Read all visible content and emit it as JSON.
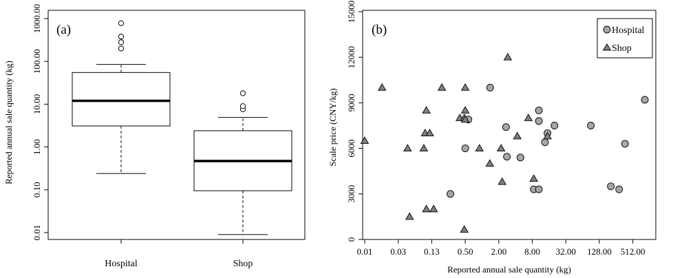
{
  "chart_data": [
    {
      "type": "boxplot",
      "panel_label": "(a)",
      "ylabel": "Reported annual sale quantity (kg)",
      "xlabel": "",
      "y_scale": "log10",
      "ylim": [
        0.01,
        1000
      ],
      "y_ticks": [
        {
          "value": 0.01,
          "label": "0.01"
        },
        {
          "value": 0.1,
          "label": "0.10"
        },
        {
          "value": 1,
          "label": "1.00"
        },
        {
          "value": 10,
          "label": "10.00"
        },
        {
          "value": 100,
          "label": "100.00"
        },
        {
          "value": 1000,
          "label": "1000.00"
        }
      ],
      "categories": [
        "Hospital",
        "Shop"
      ],
      "boxes": [
        {
          "name": "Hospital",
          "whisker_low": 0.24,
          "q1": 3.1,
          "median": 12,
          "q3": 55,
          "whisker_high": 85,
          "outliers": [
            200,
            280,
            380,
            780
          ]
        },
        {
          "name": "Shop",
          "whisker_low": 0.009,
          "q1": 0.095,
          "median": 0.47,
          "q3": 2.4,
          "whisker_high": 4.9,
          "outliers": [
            7.6,
            9,
            18
          ]
        }
      ]
    },
    {
      "type": "scatter",
      "panel_label": "(b)",
      "xlabel": "Reported annual sale quantity (kg)",
      "ylabel": "Scale price (CNY/kg)",
      "x_scale": "log2",
      "xlim": [
        0.0078125,
        1024
      ],
      "ylim": [
        0,
        15000
      ],
      "x_ticks": [
        {
          "value": 0.0078125,
          "label": "0.01"
        },
        {
          "value": 0.03125,
          "label": "0.03"
        },
        {
          "value": 0.125,
          "label": "0.13"
        },
        {
          "value": 0.5,
          "label": "0.50"
        },
        {
          "value": 2,
          "label": "2.00"
        },
        {
          "value": 8,
          "label": "8.00"
        },
        {
          "value": 32,
          "label": "32.00"
        },
        {
          "value": 128,
          "label": "128.00"
        },
        {
          "value": 512,
          "label": "512.00"
        }
      ],
      "y_ticks": [
        0,
        3000,
        6000,
        9000,
        12000,
        15000
      ],
      "legend": {
        "position": "top-right",
        "entries": [
          {
            "name": "Hospital",
            "marker": "circle"
          },
          {
            "name": "Shop",
            "marker": "triangle"
          }
        ]
      },
      "series": [
        {
          "name": "Hospital",
          "marker": "circle",
          "color": "#a6a6a6",
          "points": [
            [
              0.27,
              3000
            ],
            [
              0.5,
              6000
            ],
            [
              0.57,
              7900
            ],
            [
              1.4,
              10000
            ],
            [
              2.7,
              7400
            ],
            [
              2.8,
              5450
            ],
            [
              4.9,
              5400
            ],
            [
              8.5,
              3300
            ],
            [
              10.5,
              8500
            ],
            [
              10.5,
              7800
            ],
            [
              10.5,
              3300
            ],
            [
              13.5,
              6400
            ],
            [
              15,
              7000
            ],
            [
              20,
              7500
            ],
            [
              90,
              7500
            ],
            [
              206,
              3500
            ],
            [
              290,
              3300
            ],
            [
              370,
              6300
            ],
            [
              840,
              9200
            ]
          ]
        },
        {
          "name": "Shop",
          "marker": "triangle",
          "color": "#7f7f7f",
          "points": [
            [
              0.0078,
              6500
            ],
            [
              0.016,
              10000
            ],
            [
              0.046,
              6000
            ],
            [
              0.05,
              1500
            ],
            [
              0.09,
              6000
            ],
            [
              0.095,
              7000
            ],
            [
              0.1,
              8500
            ],
            [
              0.1,
              2000
            ],
            [
              0.115,
              7000
            ],
            [
              0.135,
              2000
            ],
            [
              0.19,
              10000
            ],
            [
              0.4,
              8000
            ],
            [
              0.48,
              8000
            ],
            [
              0.5,
              10000
            ],
            [
              0.5,
              8500
            ],
            [
              0.5,
              7900
            ],
            [
              0.48,
              650
            ],
            [
              0.9,
              6000
            ],
            [
              1.38,
              5000
            ],
            [
              2.2,
              6000
            ],
            [
              2.3,
              3800
            ],
            [
              2.9,
              12000
            ],
            [
              4.3,
              6800
            ],
            [
              6.8,
              8000
            ],
            [
              8.5,
              4000
            ],
            [
              15,
              6800
            ]
          ]
        }
      ]
    }
  ]
}
